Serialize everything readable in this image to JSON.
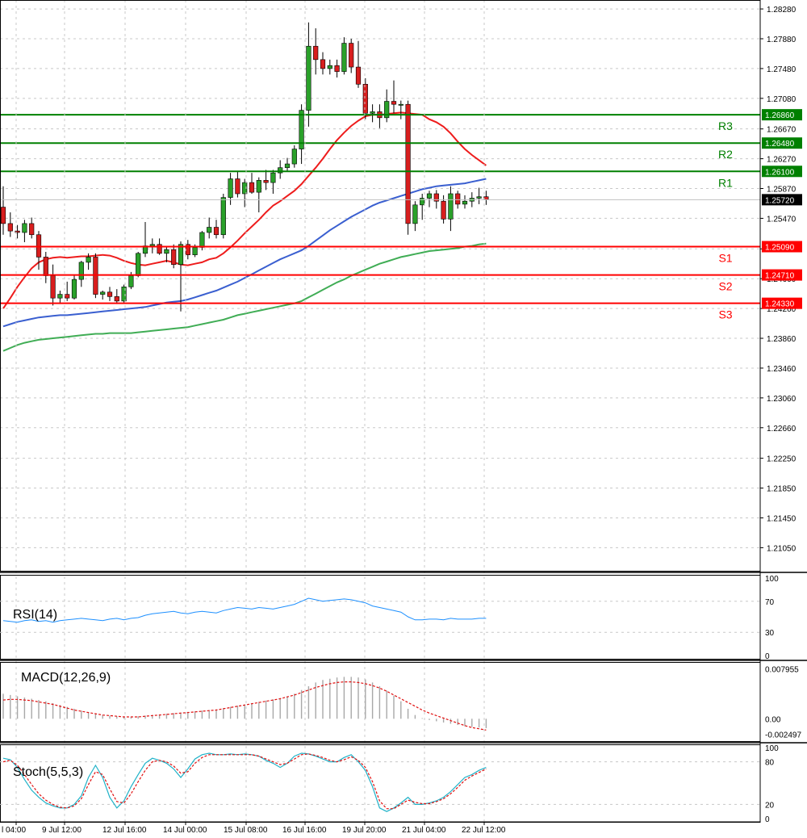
{
  "chart_data": {
    "type": "candlestick",
    "price_panel": {
      "ylim": [
        1.2074,
        1.284
      ],
      "y_ticks": [
        "1.28280",
        "1.27880",
        "1.27480",
        "1.27080",
        "1.26670",
        "1.26270",
        "1.25870",
        "1.25470",
        "1.25060",
        "1.24660",
        "1.24260",
        "1.23860",
        "1.23460",
        "1.23060",
        "1.22660",
        "1.22250",
        "1.21850",
        "1.21450",
        "1.21050"
      ],
      "current_price": {
        "value": 1.2572,
        "label": "1.25720"
      },
      "candles": [
        [
          1.2562,
          1.259,
          1.2525,
          1.254
        ],
        [
          1.254,
          1.2555,
          1.2522,
          1.253
        ],
        [
          1.253,
          1.2538,
          1.252,
          1.2528
        ],
        [
          1.2528,
          1.2545,
          1.2515,
          1.254
        ],
        [
          1.254,
          1.2548,
          1.252,
          1.2525
        ],
        [
          1.2525,
          1.253,
          1.2478,
          1.2495
        ],
        [
          1.2495,
          1.2502,
          1.246,
          1.247
        ],
        [
          1.247,
          1.2485,
          1.243,
          1.244
        ],
        [
          1.244,
          1.245,
          1.2432,
          1.2445
        ],
        [
          1.2445,
          1.2462,
          1.2436,
          1.244
        ],
        [
          1.244,
          1.247,
          1.2438,
          1.2465
        ],
        [
          1.2465,
          1.249,
          1.2455,
          1.2488
        ],
        [
          1.2488,
          1.25,
          1.2478,
          1.2495
        ],
        [
          1.2495,
          1.25,
          1.244,
          1.2445
        ],
        [
          1.2445,
          1.245,
          1.2438,
          1.2448
        ],
        [
          1.2448,
          1.2455,
          1.2436,
          1.2442
        ],
        [
          1.2442,
          1.2452,
          1.2432,
          1.2436
        ],
        [
          1.2436,
          1.2458,
          1.2434,
          1.2455
        ],
        [
          1.2455,
          1.2475,
          1.2452,
          1.247
        ],
        [
          1.247,
          1.2502,
          1.2468,
          1.25
        ],
        [
          1.25,
          1.2542,
          1.2495,
          1.251
        ],
        [
          1.251,
          1.252,
          1.25,
          1.2512
        ],
        [
          1.2512,
          1.252,
          1.2498,
          1.25
        ],
        [
          1.25,
          1.251,
          1.2488,
          1.2505
        ],
        [
          1.2505,
          1.2512,
          1.248,
          1.2485
        ],
        [
          1.2485,
          1.2516,
          1.2422,
          1.2512
        ],
        [
          1.2512,
          1.2518,
          1.2492,
          1.2498
        ],
        [
          1.2498,
          1.2512,
          1.2495,
          1.2508
        ],
        [
          1.2508,
          1.253,
          1.2504,
          1.2528
        ],
        [
          1.2528,
          1.2548,
          1.252,
          1.2535
        ],
        [
          1.2535,
          1.2545,
          1.252,
          1.2525
        ],
        [
          1.2525,
          1.258,
          1.252,
          1.2575
        ],
        [
          1.2575,
          1.2608,
          1.2565,
          1.26
        ],
        [
          1.26,
          1.261,
          1.2575,
          1.258
        ],
        [
          1.258,
          1.26,
          1.2562,
          1.2595
        ],
        [
          1.2595,
          1.2608,
          1.258,
          1.2582
        ],
        [
          1.2582,
          1.2602,
          1.2555,
          1.2598
        ],
        [
          1.2598,
          1.2612,
          1.2585,
          1.2595
        ],
        [
          1.2595,
          1.2612,
          1.258,
          1.2608
        ],
        [
          1.2608,
          1.2625,
          1.26,
          1.2615
        ],
        [
          1.2615,
          1.2628,
          1.261,
          1.262
        ],
        [
          1.262,
          1.2645,
          1.2615,
          1.264
        ],
        [
          1.264,
          1.27,
          1.262,
          1.2692
        ],
        [
          1.2692,
          1.281,
          1.267,
          1.2778
        ],
        [
          1.2778,
          1.2802,
          1.274,
          1.276
        ],
        [
          1.276,
          1.277,
          1.274,
          1.2748
        ],
        [
          1.2748,
          1.276,
          1.274,
          1.2752
        ],
        [
          1.2752,
          1.276,
          1.2736,
          1.2744
        ],
        [
          1.2744,
          1.279,
          1.274,
          1.2782
        ],
        [
          1.2782,
          1.2788,
          1.2742,
          1.275
        ],
        [
          1.275,
          1.2785,
          1.2722,
          1.2727
        ],
        [
          1.2727,
          1.2735,
          1.268,
          1.2688
        ],
        [
          1.2688,
          1.27,
          1.2676,
          1.269
        ],
        [
          1.269,
          1.27,
          1.2668,
          1.2682
        ],
        [
          1.2682,
          1.272,
          1.2676,
          1.2704
        ],
        [
          1.2704,
          1.2732,
          1.2688,
          1.27
        ],
        [
          1.27,
          1.2705,
          1.268,
          1.27
        ],
        [
          1.27,
          1.2705,
          1.2525,
          1.254
        ],
        [
          1.254,
          1.257,
          1.253,
          1.2565
        ],
        [
          1.2565,
          1.258,
          1.2545,
          1.2574
        ],
        [
          1.2574,
          1.2584,
          1.2562,
          1.258
        ],
        [
          1.258,
          1.2585,
          1.256,
          1.257
        ],
        [
          1.257,
          1.2578,
          1.254,
          1.2546
        ],
        [
          1.2546,
          1.259,
          1.253,
          1.258
        ],
        [
          1.258,
          1.2584,
          1.256,
          1.2566
        ],
        [
          1.2566,
          1.2578,
          1.256,
          1.257
        ],
        [
          1.257,
          1.2582,
          1.2562,
          1.2574
        ],
        [
          1.2574,
          1.2588,
          1.2566,
          1.2576
        ],
        [
          1.2576,
          1.2584,
          1.2565,
          1.2572
        ]
      ],
      "ma_fast": {
        "color": "#ee1c1c",
        "start": 0,
        "values": [
          1.2426,
          1.244,
          1.2455,
          1.2468,
          1.248,
          1.2488,
          1.2492,
          1.2494,
          1.2495,
          1.2494,
          1.2495,
          1.2496,
          1.2496,
          1.2497,
          1.2498,
          1.2497,
          1.2494,
          1.249,
          1.2487,
          1.2485,
          1.2484,
          1.2486,
          1.2488,
          1.249,
          1.2488,
          1.2485,
          1.2484,
          1.2486,
          1.2488,
          1.2492,
          1.2494,
          1.25,
          1.2508,
          1.2517,
          1.2527,
          1.2536,
          1.2545,
          1.2555,
          1.2564,
          1.257,
          1.2577,
          1.2584,
          1.2593,
          1.2604,
          1.2615,
          1.2627,
          1.264,
          1.2652,
          1.2662,
          1.2671,
          1.2678,
          1.2684,
          1.2686,
          1.2686,
          1.2687,
          1.2688,
          1.2689,
          1.2688,
          1.2687,
          1.2686,
          1.268,
          1.2676,
          1.267,
          1.2661,
          1.265,
          1.264,
          1.2632,
          1.2625,
          1.2618
        ]
      },
      "ma_mid": {
        "color": "#3a5fd0",
        "start": 0,
        "values": [
          1.2402,
          1.2405,
          1.2408,
          1.241,
          1.2412,
          1.2414,
          1.2415,
          1.2416,
          1.2417,
          1.2417,
          1.2418,
          1.2419,
          1.242,
          1.2421,
          1.2422,
          1.2423,
          1.2424,
          1.2425,
          1.2426,
          1.2427,
          1.2428,
          1.243,
          1.2432,
          1.2434,
          1.2435,
          1.2436,
          1.2438,
          1.2441,
          1.2444,
          1.2447,
          1.245,
          1.2454,
          1.2458,
          1.2462,
          1.2467,
          1.2472,
          1.2477,
          1.2482,
          1.2487,
          1.2492,
          1.2496,
          1.25,
          1.2504,
          1.251,
          1.2517,
          1.2524,
          1.2531,
          1.2537,
          1.2543,
          1.2549,
          1.2554,
          1.2559,
          1.2564,
          1.2568,
          1.2571,
          1.2574,
          1.2577,
          1.258,
          1.2583,
          1.2586,
          1.2588,
          1.259,
          1.2591,
          1.2592,
          1.2593,
          1.2594,
          1.2596,
          1.2598,
          1.26
        ]
      },
      "ma_slow": {
        "color": "#40ad55",
        "start": 0,
        "values": [
          1.2369,
          1.2373,
          1.2377,
          1.238,
          1.2382,
          1.2384,
          1.2385,
          1.2386,
          1.2387,
          1.2388,
          1.2389,
          1.239,
          1.2391,
          1.2392,
          1.2392,
          1.2393,
          1.2393,
          1.2393,
          1.2393,
          1.2394,
          1.2395,
          1.2396,
          1.2397,
          1.2398,
          1.2399,
          1.24,
          1.2401,
          1.2403,
          1.2405,
          1.2407,
          1.2409,
          1.2411,
          1.2414,
          1.2417,
          1.2419,
          1.2421,
          1.2423,
          1.2425,
          1.2427,
          1.2429,
          1.2431,
          1.2433,
          1.2436,
          1.2441,
          1.2446,
          1.2451,
          1.2456,
          1.2461,
          1.2465,
          1.247,
          1.2474,
          1.2478,
          1.2482,
          1.2486,
          1.2489,
          1.2492,
          1.2495,
          1.2497,
          1.2499,
          1.2501,
          1.2503,
          1.2504,
          1.2505,
          1.2506,
          1.2507,
          1.2509,
          1.251,
          1.2512,
          1.2513
        ]
      },
      "levels": [
        {
          "name": "R3",
          "value": 1.2686,
          "label": "1.26860",
          "color": "#008000"
        },
        {
          "name": "R2",
          "value": 1.2648,
          "label": "1.26480",
          "color": "#008000"
        },
        {
          "name": "R1",
          "value": 1.261,
          "label": "1.26100",
          "color": "#008000"
        },
        {
          "name": "S1",
          "value": 1.2509,
          "label": "1.25090",
          "color": "#ff0000"
        },
        {
          "name": "S2",
          "value": 1.2471,
          "label": "1.24710",
          "color": "#ff0000"
        },
        {
          "name": "S3",
          "value": 1.2433,
          "label": "1.24330",
          "color": "#ff0000"
        }
      ]
    },
    "rsi_panel": {
      "label": "RSI(14)",
      "ylim": [
        0,
        100
      ],
      "ticks": [
        "100",
        "70",
        "30",
        "0"
      ],
      "values": [
        45,
        44,
        43,
        45,
        46,
        44,
        45,
        43,
        45,
        46,
        47,
        48,
        47,
        46,
        45,
        47,
        48,
        46,
        48,
        49,
        52,
        54,
        55,
        56,
        57,
        55,
        54,
        56,
        57,
        56,
        55,
        58,
        60,
        62,
        61,
        60,
        62,
        61,
        60,
        62,
        64,
        66,
        70,
        74,
        72,
        70,
        71,
        72,
        73,
        72,
        70,
        68,
        64,
        62,
        60,
        58,
        56,
        50,
        46,
        46,
        47,
        47,
        46,
        48,
        47,
        47,
        47,
        48,
        48
      ]
    },
    "macd_panel": {
      "label": "MACD(12,26,9)",
      "ylim": [
        -0.0028,
        0.0083
      ],
      "ticks": [
        "0.007955",
        "0.00",
        "-0.002497"
      ],
      "histogram": [
        0.004,
        0.0038,
        0.0036,
        0.0034,
        0.0032,
        0.003,
        0.0028,
        0.0025,
        0.0022,
        0.0019,
        0.0016,
        0.0013,
        0.001,
        0.0008,
        0.0006,
        0.0005,
        0.0004,
        0.0003,
        0.0003,
        0.0004,
        0.0005,
        0.0006,
        0.0007,
        0.0008,
        0.0009,
        0.001,
        0.0011,
        0.0012,
        0.0013,
        0.0014,
        0.0015,
        0.0017,
        0.0019,
        0.0021,
        0.0023,
        0.0025,
        0.0027,
        0.0029,
        0.0031,
        0.0033,
        0.0036,
        0.004,
        0.0046,
        0.0052,
        0.0058,
        0.0062,
        0.0064,
        0.0066,
        0.0067,
        0.0067,
        0.0066,
        0.0063,
        0.0058,
        0.0052,
        0.0045,
        0.0037,
        0.0028,
        0.0016,
        0.0006,
        0.0001,
        -0.0002,
        -0.0004,
        -0.0006,
        -0.0008,
        -0.001,
        -0.0012,
        -0.0013,
        -0.0014,
        -0.0015
      ],
      "signal": [
        0.003,
        0.0031,
        0.0031,
        0.003,
        0.0029,
        0.0027,
        0.0025,
        0.0023,
        0.002,
        0.0017,
        0.0014,
        0.0012,
        0.001,
        0.0008,
        0.0006,
        0.0005,
        0.0004,
        0.0003,
        0.0003,
        0.0003,
        0.0004,
        0.0005,
        0.0006,
        0.0007,
        0.0008,
        0.0009,
        0.001,
        0.0011,
        0.0012,
        0.0013,
        0.0014,
        0.0016,
        0.0018,
        0.002,
        0.0022,
        0.0024,
        0.0026,
        0.0028,
        0.003,
        0.0032,
        0.0035,
        0.0038,
        0.0042,
        0.0046,
        0.005,
        0.0053,
        0.0056,
        0.0058,
        0.0059,
        0.0059,
        0.0058,
        0.0056,
        0.0053,
        0.0049,
        0.0044,
        0.0038,
        0.0032,
        0.0026,
        0.002,
        0.0014,
        0.0009,
        0.0005,
        0.0001,
        -0.0003,
        -0.0007,
        -0.0011,
        -0.0014,
        -0.0016,
        -0.0018
      ]
    },
    "stoch_panel": {
      "label": "Stoch(5,5,3)",
      "ylim": [
        0,
        100
      ],
      "ticks": [
        "100",
        "80",
        "20",
        "0"
      ],
      "main": [
        85,
        83,
        72,
        55,
        40,
        30,
        22,
        18,
        15,
        15,
        20,
        32,
        58,
        75,
        58,
        30,
        15,
        25,
        45,
        62,
        78,
        85,
        82,
        78,
        70,
        58,
        70,
        84,
        90,
        92,
        90,
        90,
        91,
        90,
        91,
        90,
        88,
        82,
        78,
        72,
        78,
        88,
        92,
        91,
        88,
        84,
        80,
        80,
        86,
        90,
        80,
        68,
        45,
        15,
        10,
        15,
        22,
        30,
        20,
        20,
        22,
        25,
        30,
        38,
        48,
        58,
        62,
        68,
        72
      ],
      "signal": [
        80,
        82,
        75,
        62,
        48,
        35,
        26,
        20,
        16,
        15,
        18,
        28,
        48,
        66,
        62,
        42,
        24,
        22,
        35,
        52,
        68,
        80,
        82,
        80,
        74,
        64,
        66,
        78,
        86,
        90,
        90,
        90,
        90,
        90,
        90,
        90,
        88,
        84,
        80,
        76,
        78,
        84,
        90,
        91,
        89,
        86,
        82,
        80,
        83,
        87,
        82,
        72,
        52,
        25,
        14,
        14,
        20,
        26,
        23,
        21,
        21,
        24,
        28,
        35,
        44,
        54,
        60,
        65,
        70
      ]
    },
    "x_labels": [
      "l 04:00",
      "9 Jul 12:00",
      "12 Jul 16:00",
      "14 Jul 00:00",
      "15 Jul 08:00",
      "16 Jul 16:00",
      "19 Jul 20:00",
      "21 Jul 04:00",
      "22 Jul 12:00"
    ]
  }
}
